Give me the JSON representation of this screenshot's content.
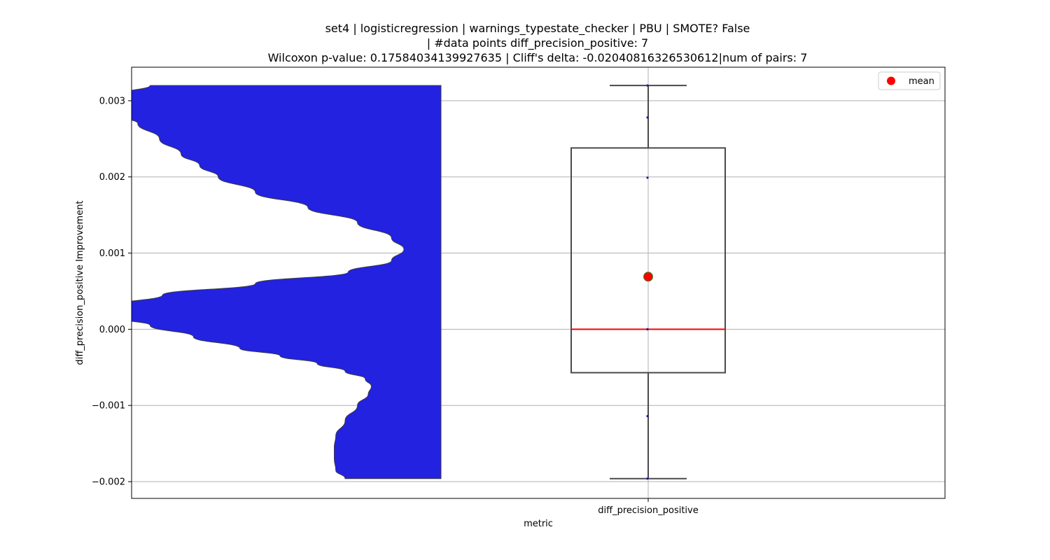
{
  "chart_data": {
    "type": "box-violin",
    "title_lines": [
      "set4 | logisticregression | warnings_typestate_checker | PBU | SMOTE? False",
      "| #data points diff_precision_positive: 7",
      "Wilcoxon p-value: 0.17584034139927635 | Cliff's delta: -0.02040816326530612|num of pairs: 7"
    ],
    "xlabel": "metric",
    "ylabel": "diff_precision_positive Improvement",
    "categories": [
      "diff_precision_positive"
    ],
    "ylim": [
      -0.00222,
      0.00344
    ],
    "yticks": [
      -0.002,
      -0.001,
      0.0,
      0.001,
      0.002,
      0.003
    ],
    "ytick_labels": [
      "−0.002",
      "−0.001",
      "0.000",
      "0.001",
      "0.002",
      "0.003"
    ],
    "grid": true,
    "points": [
      0.0032,
      0.00278,
      0.00199,
      0.0,
      0.0,
      -0.00114,
      -0.00196
    ],
    "box": {
      "q1": -0.00057,
      "median": 0.0,
      "q3": 0.00238,
      "whisker_low": -0.00196,
      "whisker_high": 0.0032,
      "mean": 0.00069
    },
    "violin": {
      "ymin": -0.00196,
      "ymax": 0.0032,
      "profile": [
        [
          -0.00196,
          0.69
        ],
        [
          -0.00185,
          0.66
        ],
        [
          -0.0017,
          0.655
        ],
        [
          -0.00155,
          0.655
        ],
        [
          -0.0014,
          0.66
        ],
        [
          -0.0012,
          0.69
        ],
        [
          -0.001,
          0.73
        ],
        [
          -0.00085,
          0.765
        ],
        [
          -0.00075,
          0.775
        ],
        [
          -0.00065,
          0.755
        ],
        [
          -0.00055,
          0.69
        ],
        [
          -0.00045,
          0.6
        ],
        [
          -0.00035,
          0.48
        ],
        [
          -0.00025,
          0.35
        ],
        [
          -0.0001,
          0.2
        ],
        [
          5e-05,
          0.06
        ],
        [
          0.00015,
          -0.04
        ],
        [
          0.0003,
          -0.08
        ],
        [
          0.00045,
          0.1
        ],
        [
          0.0006,
          0.4
        ],
        [
          0.00075,
          0.7
        ],
        [
          0.0009,
          0.84
        ],
        [
          0.00105,
          0.88
        ],
        [
          0.0012,
          0.84
        ],
        [
          0.0014,
          0.73
        ],
        [
          0.0016,
          0.57
        ],
        [
          0.0018,
          0.4
        ],
        [
          0.002,
          0.28
        ],
        [
          0.00215,
          0.22
        ],
        [
          0.0023,
          0.16
        ],
        [
          0.0025,
          0.09
        ],
        [
          0.0027,
          0.02
        ],
        [
          0.0028,
          -0.03
        ],
        [
          0.003,
          -0.06
        ],
        [
          0.0031,
          -0.02
        ],
        [
          0.0032,
          0.06
        ]
      ]
    },
    "legend": {
      "entries": [
        "mean"
      ],
      "placement": "top-right"
    },
    "colors": {
      "violin_fill": "#2222e0",
      "violin_edge": "#3c3c3c",
      "box_edge": "#4a4a4a",
      "median_line": "#ff0000",
      "mean_marker": "#ff0000",
      "mean_marker_edge": "#2e8b2e",
      "points": "#1a1aa8",
      "grid": "#b0b0b0",
      "axes": "#000000"
    }
  }
}
